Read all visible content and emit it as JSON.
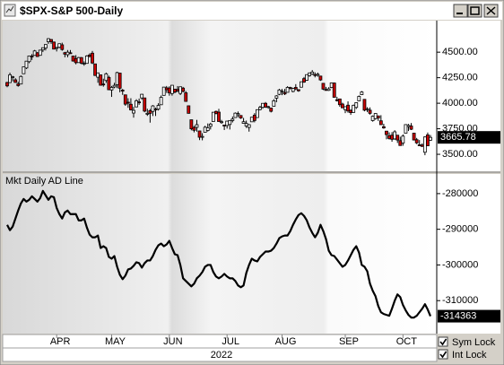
{
  "chart_data": [
    {
      "type": "candlestick",
      "title": "$SPX-S&P 500-Daily",
      "open": [
        4203,
        4202,
        4252,
        4229,
        4188,
        4188,
        4289,
        4345,
        4407,
        4462,
        4469,
        4494,
        4469,
        4522,
        4541,
        4602,
        4624,
        4599,
        4540,
        4548,
        4572,
        4495,
        4475,
        4494,
        4462,
        4437,
        4398,
        4447,
        4386,
        4390,
        4472,
        4490,
        4385,
        4255,
        4278,
        4188,
        4223,
        4253,
        4130,
        4159,
        4181,
        4295,
        4128,
        4082,
        4010,
        3990,
        3904,
        3964,
        4013,
        4052,
        4052,
        3900,
        3927,
        3920,
        3943,
        3942,
        3985,
        4077,
        4151,
        4149,
        4095,
        4137,
        4135,
        4096,
        4148,
        4102,
        3975,
        3838,
        3763,
        3764,
        3729,
        3675,
        3716,
        3733,
        3774,
        3821,
        3920,
        3913,
        3810,
        3786,
        3782,
        3792,
        3831,
        3860,
        3888,
        3880,
        3803,
        3776,
        3763,
        3818,
        3883,
        3860,
        3938,
        3960,
        3999,
        3966,
        3953,
        3970,
        4050,
        4087,
        4112,
        4104,
        4107,
        4154,
        4115,
        4155,
        4133,
        4157,
        4241,
        4225,
        4270,
        4286,
        4280,
        4274,
        4266,
        4195,
        4134,
        4126,
        4154,
        4198,
        4034,
        4042,
        3992,
        3937,
        3981,
        3930,
        3910,
        3959,
        4023,
        4084,
        4038,
        3940,
        3932,
        3830,
        3849,
        3876,
        3828,
        3770,
        3727,
        3682,
        3687,
        3651,
        3687,
        3633,
        3610,
        3707,
        3771,
        3777,
        3707,
        3643,
        3593,
        3591,
        3520,
        3690,
        3638
      ],
      "high": [
        4210,
        4299,
        4268,
        4245,
        4210,
        4272,
        4358,
        4412,
        4465,
        4481,
        4522,
        4501,
        4520,
        4546,
        4575,
        4637,
        4627,
        4604,
        4549,
        4583,
        4593,
        4503,
        4521,
        4521,
        4464,
        4471,
        4453,
        4452,
        4410,
        4471,
        4489,
        4512,
        4385,
        4299,
        4278,
        4240,
        4300,
        4270,
        4169,
        4200,
        4308,
        4296,
        4140,
        4082,
        4049,
        4049,
        3964,
        4039,
        4046,
        4090,
        4052,
        3946,
        3944,
        3982,
        3956,
        4000,
        4076,
        4158,
        4169,
        4166,
        4177,
        4142,
        4168,
        4164,
        4160,
        4119,
        3975,
        3838,
        3778,
        3837,
        3729,
        3707,
        3779,
        3802,
        3809,
        3913,
        3928,
        3945,
        3837,
        3786,
        3826,
        3832,
        3870,
        3910,
        3919,
        3880,
        3856,
        3830,
        3796,
        3863,
        3903,
        3939,
        3975,
        4000,
        4012,
        3975,
        3953,
        4040,
        4079,
        4141,
        4140,
        4140,
        4167,
        4161,
        4151,
        4187,
        4137,
        4211,
        4257,
        4280,
        4301,
        4325,
        4302,
        4300,
        4266,
        4195,
        4160,
        4157,
        4203,
        4203,
        4063,
        4044,
        4005,
        3970,
        4018,
        3942,
        3987,
        4010,
        4076,
        4119,
        4038,
        3961,
        3959,
        3880,
        3904,
        3876,
        3883,
        3799,
        3727,
        3715,
        3717,
        3736,
        3687,
        3672,
        3695,
        3791,
        3797,
        3806,
        3710,
        3660,
        3640,
        3608,
        3675,
        3713,
        3689
      ],
      "low": [
        4157,
        4200,
        4215,
        4200,
        4162,
        4187,
        4287,
        4335,
        4392,
        4424,
        4468,
        4455,
        4465,
        4501,
        4517,
        4581,
        4581,
        4530,
        4507,
        4539,
        4514,
        4450,
        4450,
        4485,
        4408,
        4381,
        4397,
        4381,
        4367,
        4390,
        4448,
        4384,
        4267,
        4200,
        4175,
        4162,
        4200,
        4131,
        4062,
        4147,
        4148,
        4107,
        4082,
        3975,
        3955,
        3929,
        3859,
        3965,
        3984,
        4034,
        3912,
        3876,
        3810,
        3875,
        3875,
        3929,
        3985,
        4077,
        4101,
        4074,
        4074,
        4098,
        4109,
        4080,
        4107,
        4017,
        3900,
        3735,
        3715,
        3722,
        3639,
        3637,
        3716,
        3723,
        3743,
        3821,
        3891,
        3820,
        3799,
        3738,
        3752,
        3743,
        3812,
        3858,
        3864,
        3847,
        3813,
        3758,
        3722,
        3818,
        3813,
        3860,
        3930,
        3946,
        3955,
        3947,
        3910,
        3970,
        4010,
        4079,
        4079,
        4080,
        4107,
        4135,
        4107,
        4128,
        4112,
        4157,
        4200,
        4219,
        4260,
        4277,
        4253,
        4260,
        4219,
        4129,
        4124,
        4121,
        4148,
        4057,
        4017,
        3965,
        3954,
        3903,
        3907,
        3886,
        3907,
        3944,
        4022,
        4083,
        3921,
        3914,
        3888,
        3820,
        3839,
        3827,
        3790,
        3750,
        3647,
        3644,
        3623,
        3641,
        3611,
        3584,
        3584,
        3707,
        3728,
        3738,
        3636,
        3600,
        3582,
        3573,
        3491,
        3582,
        3632
      ],
      "close": [
        4170,
        4278,
        4260,
        4204,
        4173,
        4262,
        4357,
        4412,
        4463,
        4461,
        4512,
        4457,
        4520,
        4543,
        4575,
        4632,
        4602,
        4530,
        4546,
        4583,
        4526,
        4481,
        4500,
        4488,
        4413,
        4397,
        4447,
        4392,
        4391,
        4463,
        4459,
        4394,
        4272,
        4297,
        4176,
        4184,
        4288,
        4132,
        4155,
        4175,
        4300,
        4147,
        4123,
        3991,
        4001,
        3935,
        3930,
        4024,
        4008,
        4088,
        3923,
        3901,
        3901,
        3974,
        3941,
        3979,
        4058,
        4158,
        4132,
        4101,
        4176,
        4109,
        4121,
        4161,
        4116,
        4018,
        3901,
        3750,
        3735,
        3790,
        3667,
        3675,
        3765,
        3760,
        3796,
        3912,
        3900,
        3821,
        3819,
        3785,
        3825,
        3831,
        3845,
        3903,
        3899,
        3855,
        3819,
        3802,
        3790,
        3863,
        3831,
        3937,
        3960,
        3999,
        3962,
        3967,
        3921,
        4024,
        4072,
        4130,
        4119,
        4091,
        4155,
        4152,
        4145,
        4140,
        4122,
        4210,
        4207,
        4280,
        4297,
        4305,
        4275,
        4284,
        4228,
        4138,
        4128,
        4141,
        4199,
        4058,
        4031,
        3986,
        3955,
        3966,
        3924,
        3908,
        3980,
        4006,
        4067,
        4110,
        3932,
        3946,
        3901,
        3873,
        3900,
        3856,
        3790,
        3758,
        3693,
        3655,
        3647,
        3720,
        3640,
        3586,
        3678,
        3791,
        3783,
        3745,
        3640,
        3612,
        3589,
        3577,
        3670,
        3583,
        3665.78
      ],
      "up_color": "#ffffff",
      "down_color": "#cc0000",
      "ylim": [
        3360,
        4800
      ],
      "yticks": [
        {
          "value": 3500,
          "label": "3500.00"
        },
        {
          "value": 3750,
          "label": "3750.00"
        },
        {
          "value": 4000,
          "label": "4000.00"
        },
        {
          "value": 4250,
          "label": "4250.00"
        },
        {
          "value": 4500,
          "label": "4500.00"
        }
      ],
      "grid": false
    },
    {
      "type": "line",
      "title": "Mkt Daily AD Line",
      "categories": [
        null,
        null,
        null,
        null,
        null,
        null,
        null,
        null,
        null,
        null,
        null,
        null,
        null,
        null,
        null,
        null,
        null,
        null,
        "APR",
        null,
        null,
        null,
        null,
        null,
        null,
        null,
        null,
        null,
        null,
        null,
        null,
        null,
        null,
        null,
        null,
        null,
        null,
        null,
        "MAY",
        null,
        null,
        null,
        null,
        null,
        null,
        null,
        null,
        null,
        null,
        null,
        null,
        null,
        null,
        null,
        null,
        null,
        null,
        null,
        null,
        "JUN",
        null,
        null,
        null,
        null,
        null,
        null,
        null,
        null,
        null,
        null,
        null,
        null,
        null,
        null,
        null,
        null,
        null,
        null,
        null,
        null,
        "JUL",
        null,
        null,
        null,
        null,
        null,
        null,
        null,
        null,
        null,
        null,
        null,
        null,
        null,
        null,
        null,
        null,
        null,
        null,
        null,
        "AUG",
        null,
        null,
        null,
        null,
        null,
        null,
        null,
        null,
        null,
        null,
        null,
        null,
        null,
        null,
        null,
        null,
        null,
        null,
        null,
        null,
        null,
        null,
        "SEP",
        null,
        null,
        null,
        null,
        null,
        null,
        null,
        null,
        null,
        null,
        null,
        null,
        null,
        null,
        null,
        null,
        null,
        null,
        null,
        null,
        "OCT",
        null,
        null,
        null,
        null,
        null,
        null,
        null,
        null,
        null,
        null
      ],
      "x_label": "2022",
      "values": [
        -288750,
        -290250,
        -289250,
        -287000,
        -284750,
        -282750,
        -281500,
        -282250,
        -281750,
        -280750,
        -281500,
        -282250,
        -281250,
        -279250,
        -280500,
        -281750,
        -280750,
        -281000,
        -284000,
        -285750,
        -287000,
        -285250,
        -284750,
        -285750,
        -285750,
        -285750,
        -287500,
        -287500,
        -287000,
        -289500,
        -291500,
        -292250,
        -292250,
        -291750,
        -295250,
        -294750,
        -295250,
        -297750,
        -298250,
        -297500,
        -300500,
        -302750,
        -304000,
        -303000,
        -301250,
        -301000,
        -300250,
        -299250,
        -299500,
        -300750,
        -299500,
        -298750,
        -298750,
        -297500,
        -295750,
        -294500,
        -294000,
        -294750,
        -294250,
        -293250,
        -295250,
        -297000,
        -297250,
        -300000,
        -303750,
        -304500,
        -305250,
        -306000,
        -305250,
        -303750,
        -303000,
        -302000,
        -300500,
        -300000,
        -300000,
        -302000,
        -303250,
        -303750,
        -303250,
        -302500,
        -303250,
        -303750,
        -303750,
        -304500,
        -305750,
        -306250,
        -305750,
        -302250,
        -300000,
        -298250,
        -298750,
        -299000,
        -297750,
        -297000,
        -296250,
        -296250,
        -296000,
        -295250,
        -294000,
        -292500,
        -292000,
        -291750,
        -291750,
        -290500,
        -288750,
        -287250,
        -286000,
        -285500,
        -286250,
        -287500,
        -289500,
        -291000,
        -292250,
        -291000,
        -288750,
        -290500,
        -292750,
        -296000,
        -297250,
        -297500,
        -298500,
        -299500,
        -300500,
        -300000,
        -298750,
        -297250,
        -295750,
        -294750,
        -296500,
        -300000,
        -300500,
        -301750,
        -305250,
        -307250,
        -308750,
        -311500,
        -313250,
        -313750,
        -314000,
        -314250,
        -312250,
        -310000,
        -308250,
        -309000,
        -311250,
        -312750,
        -314000,
        -314750,
        -314750,
        -314250,
        -313250,
        -312250,
        -311000,
        -312500,
        -314363
      ],
      "color": "#000000",
      "ylim": [
        -319250,
        -275000
      ],
      "yticks": [
        -310000,
        -300000,
        -290000,
        -280000
      ],
      "grid": false
    }
  ],
  "controls": {
    "sym_lock": "Sym Lock",
    "int_lock": "Int Lock"
  }
}
